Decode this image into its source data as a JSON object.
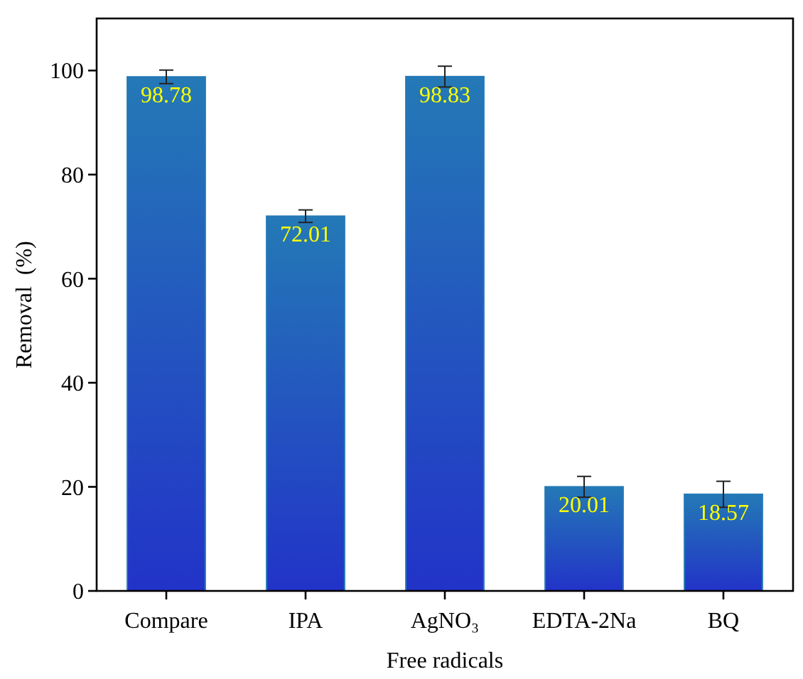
{
  "chart_data": {
    "type": "bar",
    "xlabel": "Free radicals",
    "ylabel": "Removal  (%)",
    "categories": [
      "Compare",
      "IPA",
      "AgNO₃",
      "EDTA-2Na",
      "BQ"
    ],
    "values": [
      98.78,
      72.01,
      98.83,
      20.01,
      18.57
    ],
    "errors": [
      1.3,
      1.2,
      2,
      2,
      2.5
    ],
    "color": "#2479b6",
    "data_labels": true,
    "ylim": [
      0,
      110
    ],
    "yticks": [
      0,
      20,
      40,
      60,
      80,
      100
    ],
    "grid": false
  }
}
